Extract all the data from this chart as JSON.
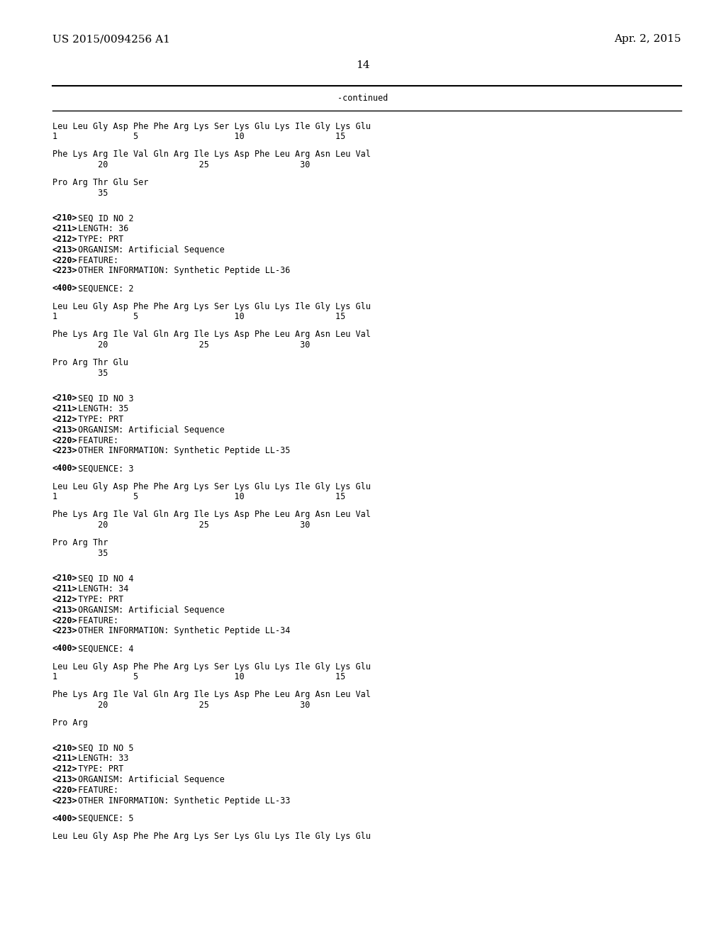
{
  "bg_color": "#ffffff",
  "header_left": "US 2015/0094256 A1",
  "header_right": "Apr. 2, 2015",
  "page_number": "14",
  "continued_label": "-continued",
  "line_color": "#000000",
  "font_size_header": 11,
  "font_size_body": 8.5,
  "font_size_page": 11,
  "content_lines": [
    {
      "text": "Leu Leu Gly Asp Phe Phe Arg Lys Ser Lys Glu Lys Ile Gly Lys Glu",
      "style": "sequence"
    },
    {
      "text": "1               5                   10                  15",
      "style": "numbers"
    },
    {
      "text": "",
      "style": "blank"
    },
    {
      "text": "Phe Lys Arg Ile Val Gln Arg Ile Lys Asp Phe Leu Arg Asn Leu Val",
      "style": "sequence"
    },
    {
      "text": "         20                  25                  30",
      "style": "numbers"
    },
    {
      "text": "",
      "style": "blank"
    },
    {
      "text": "Pro Arg Thr Glu Ser",
      "style": "sequence"
    },
    {
      "text": "         35",
      "style": "numbers"
    },
    {
      "text": "",
      "style": "blank"
    },
    {
      "text": "",
      "style": "blank"
    },
    {
      "text": "<210> SEQ ID NO 2",
      "style": "meta"
    },
    {
      "text": "<211> LENGTH: 36",
      "style": "meta"
    },
    {
      "text": "<212> TYPE: PRT",
      "style": "meta"
    },
    {
      "text": "<213> ORGANISM: Artificial Sequence",
      "style": "meta"
    },
    {
      "text": "<220> FEATURE:",
      "style": "meta"
    },
    {
      "text": "<223> OTHER INFORMATION: Synthetic Peptide LL-36",
      "style": "meta"
    },
    {
      "text": "",
      "style": "blank"
    },
    {
      "text": "<400> SEQUENCE: 2",
      "style": "meta"
    },
    {
      "text": "",
      "style": "blank"
    },
    {
      "text": "Leu Leu Gly Asp Phe Phe Arg Lys Ser Lys Glu Lys Ile Gly Lys Glu",
      "style": "sequence"
    },
    {
      "text": "1               5                   10                  15",
      "style": "numbers"
    },
    {
      "text": "",
      "style": "blank"
    },
    {
      "text": "Phe Lys Arg Ile Val Gln Arg Ile Lys Asp Phe Leu Arg Asn Leu Val",
      "style": "sequence"
    },
    {
      "text": "         20                  25                  30",
      "style": "numbers"
    },
    {
      "text": "",
      "style": "blank"
    },
    {
      "text": "Pro Arg Thr Glu",
      "style": "sequence"
    },
    {
      "text": "         35",
      "style": "numbers"
    },
    {
      "text": "",
      "style": "blank"
    },
    {
      "text": "",
      "style": "blank"
    },
    {
      "text": "<210> SEQ ID NO 3",
      "style": "meta"
    },
    {
      "text": "<211> LENGTH: 35",
      "style": "meta"
    },
    {
      "text": "<212> TYPE: PRT",
      "style": "meta"
    },
    {
      "text": "<213> ORGANISM: Artificial Sequence",
      "style": "meta"
    },
    {
      "text": "<220> FEATURE:",
      "style": "meta"
    },
    {
      "text": "<223> OTHER INFORMATION: Synthetic Peptide LL-35",
      "style": "meta"
    },
    {
      "text": "",
      "style": "blank"
    },
    {
      "text": "<400> SEQUENCE: 3",
      "style": "meta"
    },
    {
      "text": "",
      "style": "blank"
    },
    {
      "text": "Leu Leu Gly Asp Phe Phe Arg Lys Ser Lys Glu Lys Ile Gly Lys Glu",
      "style": "sequence"
    },
    {
      "text": "1               5                   10                  15",
      "style": "numbers"
    },
    {
      "text": "",
      "style": "blank"
    },
    {
      "text": "Phe Lys Arg Ile Val Gln Arg Ile Lys Asp Phe Leu Arg Asn Leu Val",
      "style": "sequence"
    },
    {
      "text": "         20                  25                  30",
      "style": "numbers"
    },
    {
      "text": "",
      "style": "blank"
    },
    {
      "text": "Pro Arg Thr",
      "style": "sequence"
    },
    {
      "text": "         35",
      "style": "numbers"
    },
    {
      "text": "",
      "style": "blank"
    },
    {
      "text": "",
      "style": "blank"
    },
    {
      "text": "<210> SEQ ID NO 4",
      "style": "meta"
    },
    {
      "text": "<211> LENGTH: 34",
      "style": "meta"
    },
    {
      "text": "<212> TYPE: PRT",
      "style": "meta"
    },
    {
      "text": "<213> ORGANISM: Artificial Sequence",
      "style": "meta"
    },
    {
      "text": "<220> FEATURE:",
      "style": "meta"
    },
    {
      "text": "<223> OTHER INFORMATION: Synthetic Peptide LL-34",
      "style": "meta"
    },
    {
      "text": "",
      "style": "blank"
    },
    {
      "text": "<400> SEQUENCE: 4",
      "style": "meta"
    },
    {
      "text": "",
      "style": "blank"
    },
    {
      "text": "Leu Leu Gly Asp Phe Phe Arg Lys Ser Lys Glu Lys Ile Gly Lys Glu",
      "style": "sequence"
    },
    {
      "text": "1               5                   10                  15",
      "style": "numbers"
    },
    {
      "text": "",
      "style": "blank"
    },
    {
      "text": "Phe Lys Arg Ile Val Gln Arg Ile Lys Asp Phe Leu Arg Asn Leu Val",
      "style": "sequence"
    },
    {
      "text": "         20                  25                  30",
      "style": "numbers"
    },
    {
      "text": "",
      "style": "blank"
    },
    {
      "text": "Pro Arg",
      "style": "sequence"
    },
    {
      "text": "",
      "style": "blank"
    },
    {
      "text": "",
      "style": "blank"
    },
    {
      "text": "<210> SEQ ID NO 5",
      "style": "meta"
    },
    {
      "text": "<211> LENGTH: 33",
      "style": "meta"
    },
    {
      "text": "<212> TYPE: PRT",
      "style": "meta"
    },
    {
      "text": "<213> ORGANISM: Artificial Sequence",
      "style": "meta"
    },
    {
      "text": "<220> FEATURE:",
      "style": "meta"
    },
    {
      "text": "<223> OTHER INFORMATION: Synthetic Peptide LL-33",
      "style": "meta"
    },
    {
      "text": "",
      "style": "blank"
    },
    {
      "text": "<400> SEQUENCE: 5",
      "style": "meta"
    },
    {
      "text": "",
      "style": "blank"
    },
    {
      "text": "Leu Leu Gly Asp Phe Phe Arg Lys Ser Lys Glu Lys Ile Gly Lys Glu",
      "style": "sequence"
    }
  ]
}
